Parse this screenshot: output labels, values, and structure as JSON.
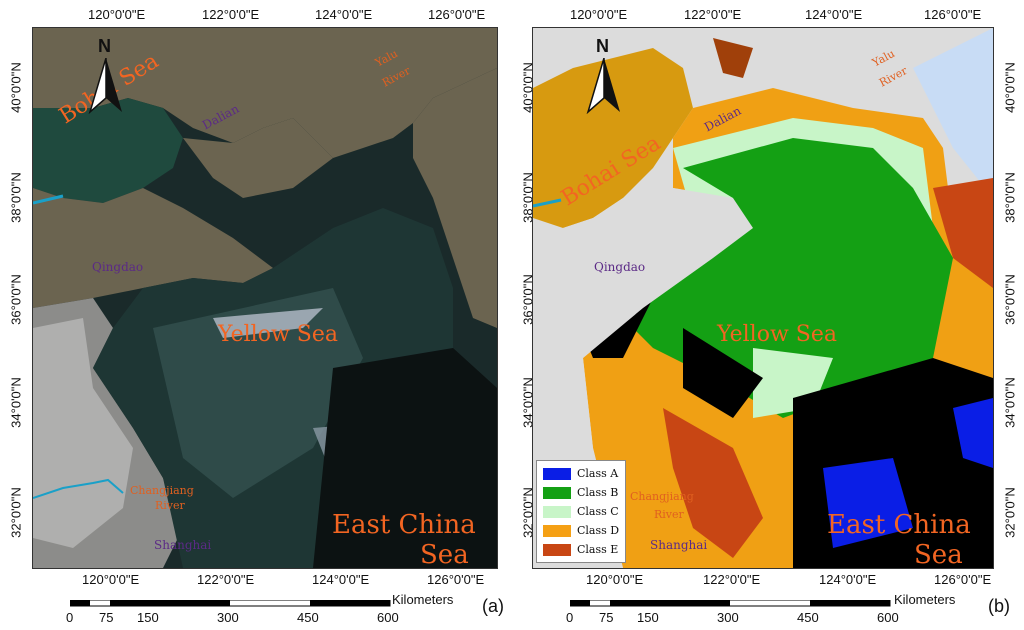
{
  "panels": [
    {
      "tag": "(a)",
      "lon_ticks": [
        "120°0'0\"E",
        "122°0'0\"E",
        "124°0'0\"E",
        "126°0'0\"E"
      ],
      "lat_ticks": [
        "40°0'0\"N",
        "38°0'0\"N",
        "36°0'0\"N",
        "34°0'0\"N",
        "32°0'0\"N"
      ],
      "places": {
        "bohai": "Bohai Sea",
        "yellow": "Yellow Sea",
        "eastchina1": "East China",
        "eastchina2": "Sea",
        "dalian": "Dalian",
        "qingdao": "Qingdao",
        "shanghai": "Shanghai",
        "yalu1": "Yalu",
        "yalu2": "River",
        "changjiang1": "Changjiang",
        "changjiang2": "River"
      },
      "north": "N",
      "scale": {
        "unit": "Kilometers",
        "ticks": [
          "0",
          "75",
          "150",
          "300",
          "450",
          "600"
        ]
      }
    },
    {
      "tag": "(b)",
      "lon_ticks": [
        "120°0'0\"E",
        "122°0'0\"E",
        "124°0'0\"E",
        "126°0'0\"E"
      ],
      "lat_ticks": [
        "40°0'0\"N",
        "38°0'0\"N",
        "36°0'0\"N",
        "34°0'0\"N",
        "32°0'0\"N"
      ],
      "places": {
        "bohai": "Bohai Sea",
        "yellow": "Yellow Sea",
        "eastchina1": "East China",
        "eastchina2": "Sea",
        "dalian": "Dalian",
        "qingdao": "Qingdao",
        "shanghai": "Shanghai",
        "yalu1": "Yalu",
        "yalu2": "River",
        "changjiang1": "Changjiang",
        "changjiang2": "River"
      },
      "north": "N",
      "scale": {
        "unit": "Kilometers",
        "ticks": [
          "0",
          "75",
          "150",
          "300",
          "450",
          "600"
        ]
      },
      "legend": [
        {
          "label": "Class A",
          "color": "#0a1ee6"
        },
        {
          "label": "Class B",
          "color": "#14a014"
        },
        {
          "label": "Class C",
          "color": "#c8f5c8"
        },
        {
          "label": "Class D",
          "color": "#f5a014"
        },
        {
          "label": "Class E",
          "color": "#c84614"
        }
      ]
    }
  ]
}
